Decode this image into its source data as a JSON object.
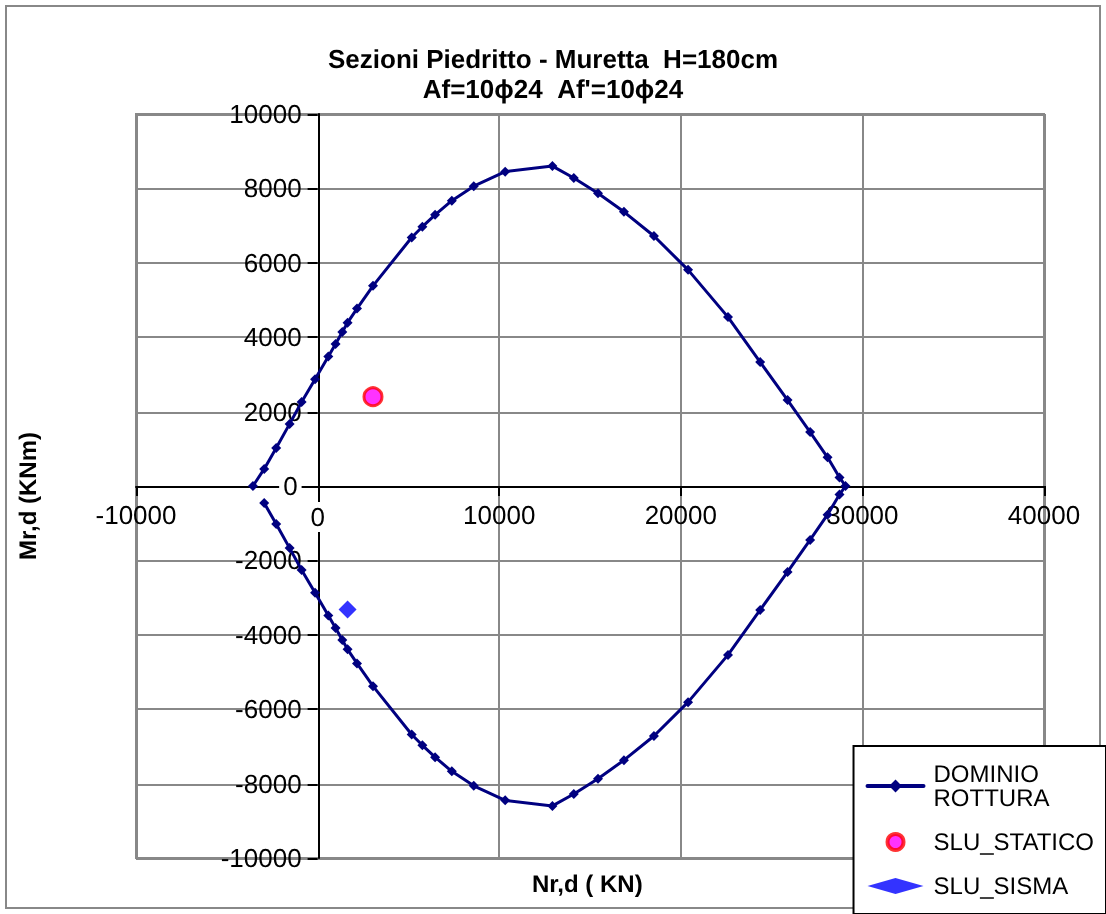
{
  "chart_data": {
    "type": "line",
    "title": "Sezioni Piedritto - Muretta  H=180cm",
    "subtitle": "Af=10ϕ24  Af'=10ϕ24",
    "xlabel": "Nr,d ( KN)",
    "ylabel": "Mr,d (KNm)",
    "xlim": [
      -10000,
      40000
    ],
    "xticks": [
      -10000,
      0,
      10000,
      20000,
      30000,
      40000
    ],
    "ylim": [
      -10000,
      10000
    ],
    "yticks": [
      -10000,
      -8000,
      -6000,
      -4000,
      -2000,
      0,
      2000,
      4000,
      6000,
      8000,
      10000
    ],
    "grid": true,
    "legend": "bottom right",
    "series": [
      {
        "name": "DOMINIO ROTTURA",
        "color": "#000080",
        "marker": "diamond",
        "x": [
          -3560,
          -2940,
          -2280,
          -1540,
          -880,
          -140,
          590,
          990,
          1360,
          1650,
          2170,
          3050,
          5180,
          5770,
          6470,
          7390,
          8600,
          10330,
          12930,
          14110,
          15440,
          16870,
          18520,
          20400,
          22600,
          24370,
          25880,
          27120,
          28080,
          28740,
          29070,
          28740,
          28080,
          27120,
          25880,
          24370,
          22600,
          20400,
          18520,
          16870,
          15440,
          14110,
          12930,
          10330,
          8600,
          7390,
          6470,
          5770,
          5180,
          3050,
          2170,
          1650,
          1360,
          990,
          590,
          -140,
          -880,
          -1540,
          -2280,
          -2940
        ],
        "values": [
          0,
          460,
          1020,
          1670,
          2260,
          2870,
          3480,
          3820,
          4140,
          4390,
          4770,
          5380,
          6680,
          6970,
          7290,
          7670,
          8060,
          8450,
          8600,
          8280,
          7870,
          7370,
          6720,
          5810,
          4540,
          3330,
          2310,
          1450,
          770,
          230,
          0,
          -230,
          -770,
          -1450,
          -2310,
          -3330,
          -4540,
          -5810,
          -6720,
          -7370,
          -7870,
          -8280,
          -8600,
          -8450,
          -8060,
          -7670,
          -7290,
          -6970,
          -6680,
          -5380,
          -4770,
          -4390,
          -4140,
          -3820,
          -3480,
          -2870,
          -2260,
          -1670,
          -1020,
          -460
        ]
      },
      {
        "name": "SLU_STATICO",
        "type": "scatter",
        "color": "#ff00ff",
        "marker": "circle",
        "x": [
          3050
        ],
        "values": [
          2400
        ]
      },
      {
        "name": "SLU_SISMA",
        "type": "scatter",
        "color": "#0000ff",
        "marker": "diamond",
        "x": [
          1650
        ],
        "values": [
          -3320
        ]
      }
    ]
  }
}
